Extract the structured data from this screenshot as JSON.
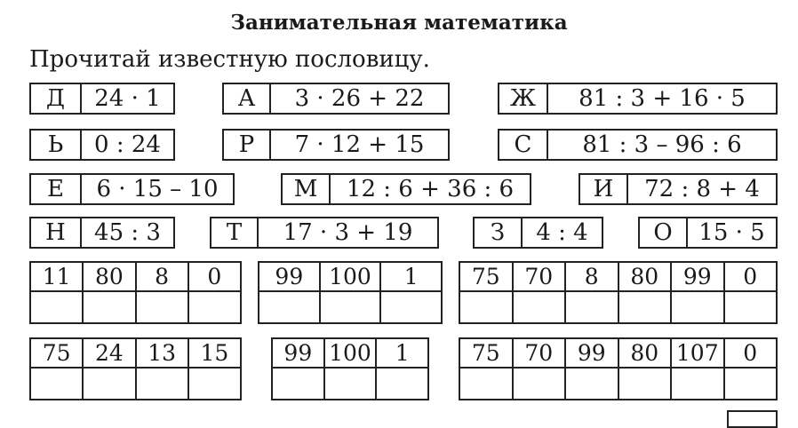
{
  "title": "Занимательная математика",
  "subtitle": "Прочитай известную пословицу.",
  "codes": [
    {
      "letter": "Д",
      "expr": "24 · 1"
    },
    {
      "letter": "А",
      "expr": "3 · 26 + 22"
    },
    {
      "letter": "Ж",
      "expr": "81 : 3 + 16 · 5"
    },
    {
      "letter": "Ь",
      "expr": "0 : 24"
    },
    {
      "letter": "Р",
      "expr": "7 · 12 + 15"
    },
    {
      "letter": "С",
      "expr": "81 : 3 – 96 : 6"
    },
    {
      "letter": "Е",
      "expr": "6 · 15 – 10"
    },
    {
      "letter": "М",
      "expr": "12 : 6 + 36 : 6"
    },
    {
      "letter": "И",
      "expr": "72 : 8 + 4"
    },
    {
      "letter": "Н",
      "expr": "45 : 3"
    },
    {
      "letter": "Т",
      "expr": "17 · 3 + 19"
    },
    {
      "letter": "З",
      "expr": "4 : 4"
    },
    {
      "letter": "О",
      "expr": "15 · 5"
    }
  ],
  "answer_grids": [
    [
      "11",
      "80",
      "8",
      "0"
    ],
    [
      "99",
      "100",
      "1"
    ],
    [
      "75",
      "70",
      "8",
      "80",
      "99",
      "0"
    ],
    [
      "75",
      "24",
      "13",
      "15"
    ],
    [
      "99",
      "100",
      "1"
    ],
    [
      "75",
      "70",
      "99",
      "80",
      "107",
      "0"
    ]
  ]
}
